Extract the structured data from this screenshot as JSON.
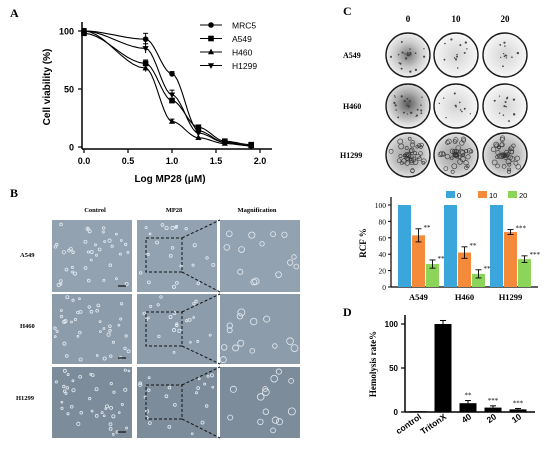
{
  "panels": {
    "A": {
      "letter": "A"
    },
    "B": {
      "letter": "B"
    },
    "C": {
      "letter": "C"
    },
    "D": {
      "letter": "D"
    }
  },
  "microscopy": {
    "col_headers": [
      "Control",
      "MP28",
      "Magnification"
    ],
    "row_labels": [
      "A549",
      "H460",
      "H1299"
    ],
    "colors": {
      "A549": "#93a2b1",
      "H460": "#8d9cab",
      "H1299": "#7d8c9a"
    }
  },
  "colony": {
    "col_headers": [
      "0",
      "10",
      "20"
    ],
    "row_labels": [
      "A549",
      "H460",
      "H1299"
    ]
  },
  "chart_data": [
    {
      "panel": "A",
      "type": "line",
      "xlabel": "Log MP28 (μM)",
      "ylabel": "Cell viability (%)",
      "xlim": [
        0,
        2.0
      ],
      "ylim": [
        0,
        100
      ],
      "xticks": [
        "0.0",
        "0.5",
        "1.0",
        "1.5",
        "2.0"
      ],
      "yticks": [
        "0",
        "50",
        "100"
      ],
      "legend_position": "top-right",
      "series": [
        {
          "name": "MRC5",
          "marker": "circle",
          "x": [
            0.0,
            0.7,
            1.0,
            1.3,
            1.6,
            1.9
          ],
          "y": [
            100,
            93,
            63,
            14,
            4,
            1
          ],
          "err": [
            2,
            5,
            2,
            2,
            1,
            1
          ]
        },
        {
          "name": "A549",
          "marker": "square",
          "x": [
            0.0,
            0.7,
            1.0,
            1.3,
            1.6,
            1.9
          ],
          "y": [
            98,
            72,
            40,
            17,
            5,
            2
          ],
          "err": [
            2,
            3,
            2,
            2,
            1,
            1
          ]
        },
        {
          "name": "H460",
          "marker": "triangle-up",
          "x": [
            0.0,
            0.7,
            1.0,
            1.3,
            1.6,
            1.9
          ],
          "y": [
            100,
            68,
            22,
            8,
            3,
            1
          ],
          "err": [
            2,
            3,
            2,
            1,
            1,
            1
          ]
        },
        {
          "name": "H1299",
          "marker": "triangle-down",
          "x": [
            0.0,
            0.7,
            1.0,
            1.3,
            1.6,
            1.9
          ],
          "y": [
            100,
            85,
            45,
            12,
            4,
            1
          ],
          "err": [
            2,
            4,
            4,
            2,
            1,
            1
          ]
        }
      ]
    },
    {
      "panel": "C",
      "type": "bar",
      "ylabel": "RCF %",
      "ylim": [
        0,
        100
      ],
      "yticks": [
        "0",
        "20",
        "40",
        "60",
        "80",
        "100"
      ],
      "categories": [
        "A549",
        "H460",
        "H1299"
      ],
      "legend_position": "top",
      "series": [
        {
          "name": "0",
          "color": "#3aa6dc",
          "values": [
            100,
            100,
            100
          ],
          "err": [
            0,
            0,
            0
          ],
          "sig": [
            "",
            "",
            ""
          ]
        },
        {
          "name": "10",
          "color": "#f58a3a",
          "values": [
            63,
            42,
            67
          ],
          "err": [
            8,
            7,
            3
          ],
          "sig": [
            "**",
            "**",
            "***"
          ]
        },
        {
          "name": "20",
          "color": "#8dd45a",
          "values": [
            28,
            16,
            34
          ],
          "err": [
            5,
            5,
            4
          ],
          "sig": [
            "**",
            "***",
            "***"
          ]
        }
      ]
    },
    {
      "panel": "D",
      "type": "bar",
      "ylabel": "Hemolysis rate%",
      "ylim": [
        0,
        100
      ],
      "yticks": [
        "0",
        "50",
        "100"
      ],
      "categories": [
        "control",
        "TritonX",
        "40",
        "20",
        "10"
      ],
      "values": [
        0,
        100,
        10,
        5,
        3
      ],
      "err": [
        0,
        4,
        3,
        2,
        1
      ],
      "sig": [
        "",
        "",
        "**",
        "***",
        "***"
      ],
      "color": "#000000"
    }
  ]
}
